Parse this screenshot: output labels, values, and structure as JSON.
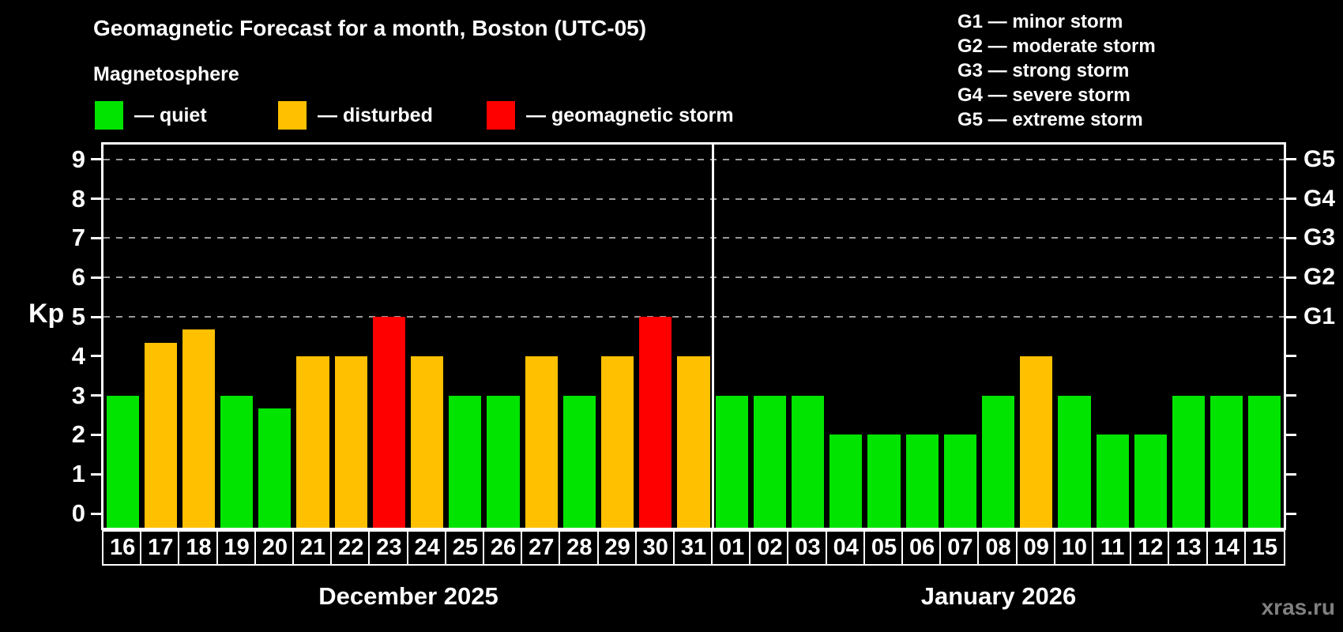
{
  "title": "Geomagnetic Forecast for a month, Boston (UTC-05)",
  "subtitle": "Magnetosphere",
  "legend": {
    "quiet": {
      "label": "— quiet",
      "color": "#00e400"
    },
    "disturbed": {
      "label": "— disturbed",
      "color": "#ffc000"
    },
    "storm": {
      "label": "— geomagnetic storm",
      "color": "#ff0000"
    }
  },
  "g_legend": [
    "G1 — minor storm",
    "G2 — moderate storm",
    "G3 — strong storm",
    "G4 — severe storm",
    "G5 — extreme storm"
  ],
  "watermark": "xras.ru",
  "chart_data": {
    "type": "bar",
    "title": "Geomagnetic Forecast for a month, Boston (UTC-05)",
    "ylabel": "Kp",
    "ylim": [
      0,
      9
    ],
    "grid": "dashed horizontal at Kp 5-9 only",
    "legend_position": "top",
    "axis_ticks_kp": [
      0,
      1,
      2,
      3,
      4,
      5,
      6,
      7,
      8,
      9
    ],
    "gridlines_kp": [
      5,
      6,
      7,
      8,
      9
    ],
    "g_scale": [
      {
        "kp": 5,
        "label": "G1"
      },
      {
        "kp": 6,
        "label": "G2"
      },
      {
        "kp": 7,
        "label": "G3"
      },
      {
        "kp": 8,
        "label": "G4"
      },
      {
        "kp": 9,
        "label": "G5"
      }
    ],
    "months": [
      {
        "label": "December 2025",
        "days": [
          "16",
          "17",
          "18",
          "19",
          "20",
          "21",
          "22",
          "23",
          "24",
          "25",
          "26",
          "27",
          "28",
          "29",
          "30",
          "31"
        ],
        "values": [
          3,
          4.33,
          4.67,
          3,
          2.67,
          4,
          4,
          5,
          4,
          3,
          3,
          4,
          3,
          4,
          5,
          4
        ],
        "status": [
          "quiet",
          "disturbed",
          "disturbed",
          "quiet",
          "quiet",
          "disturbed",
          "disturbed",
          "storm",
          "disturbed",
          "quiet",
          "quiet",
          "disturbed",
          "quiet",
          "disturbed",
          "storm",
          "disturbed"
        ]
      },
      {
        "label": "January 2026",
        "days": [
          "01",
          "02",
          "03",
          "04",
          "05",
          "06",
          "07",
          "08",
          "09",
          "10",
          "11",
          "12",
          "13",
          "14",
          "15"
        ],
        "values": [
          3,
          3,
          3,
          2,
          2,
          2,
          2,
          3,
          4,
          3,
          2,
          2,
          3,
          3,
          3
        ],
        "status": [
          "quiet",
          "quiet",
          "quiet",
          "quiet",
          "quiet",
          "quiet",
          "quiet",
          "quiet",
          "disturbed",
          "quiet",
          "quiet",
          "quiet",
          "quiet",
          "quiet",
          "quiet"
        ]
      }
    ]
  }
}
